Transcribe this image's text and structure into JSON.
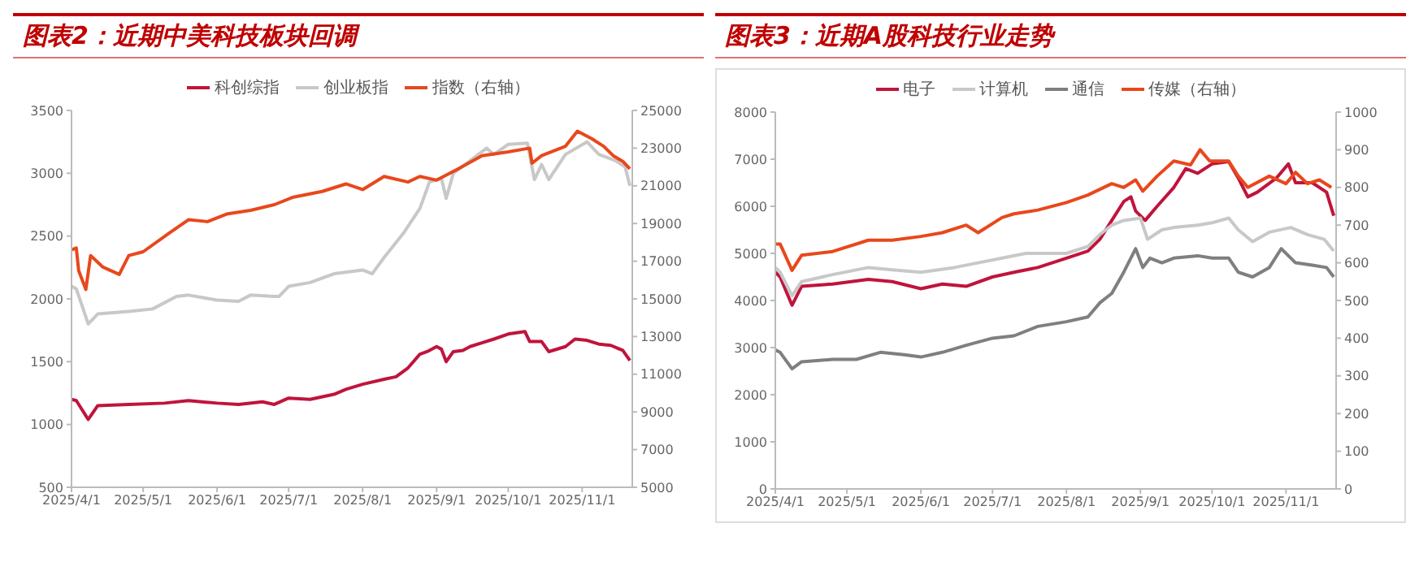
{
  "chart_data": [
    {
      "type": "line",
      "title": "图表2：近期中美科技板块回调",
      "legend": "top",
      "marker": "none",
      "line_style": "solid",
      "grid": false,
      "xlim": [
        "2025-04-01",
        "2025-11-22"
      ],
      "xticks": [
        {
          "value": "2025-04-01",
          "label": "2025/4/1"
        },
        {
          "value": "2025-05-01",
          "label": "2025/5/1"
        },
        {
          "value": "2025-06-01",
          "label": "2025/6/1"
        },
        {
          "value": "2025-07-01",
          "label": "2025/7/1"
        },
        {
          "value": "2025-08-01",
          "label": "2025/8/1"
        },
        {
          "value": "2025-09-01",
          "label": "2025/9/1"
        },
        {
          "value": "2025-10-01",
          "label": "2025/10/1"
        },
        {
          "value": "2025-11-01",
          "label": "2025/11/1"
        }
      ],
      "ylim": [
        500,
        3500
      ],
      "yticks": [
        500,
        1000,
        1500,
        2000,
        2500,
        3000,
        3500
      ],
      "y2lim": [
        5000,
        25000
      ],
      "y2ticks": [
        5000,
        7000,
        9000,
        11000,
        13000,
        15000,
        17000,
        19000,
        21000,
        23000,
        25000
      ],
      "series": [
        {
          "name": "科创综指",
          "color": "#c0143c",
          "x": [
            "2025-04-01",
            "2025-04-03",
            "2025-04-08",
            "2025-04-12",
            "2025-04-25",
            "2025-05-10",
            "2025-05-20",
            "2025-06-01",
            "2025-06-10",
            "2025-06-20",
            "2025-06-25",
            "2025-07-01",
            "2025-07-10",
            "2025-07-20",
            "2025-07-25",
            "2025-08-01",
            "2025-08-10",
            "2025-08-15",
            "2025-08-20",
            "2025-08-25",
            "2025-08-28",
            "2025-09-01",
            "2025-09-03",
            "2025-09-05",
            "2025-09-08",
            "2025-09-12",
            "2025-09-15",
            "2025-09-20",
            "2025-09-25",
            "2025-10-01",
            "2025-10-08",
            "2025-10-10",
            "2025-10-15",
            "2025-10-18",
            "2025-10-25",
            "2025-10-29",
            "2025-11-03",
            "2025-11-08",
            "2025-11-13",
            "2025-11-18",
            "2025-11-21"
          ],
          "values": [
            1200,
            1190,
            1040,
            1150,
            1160,
            1170,
            1190,
            1170,
            1160,
            1180,
            1160,
            1210,
            1200,
            1240,
            1280,
            1320,
            1360,
            1380,
            1450,
            1560,
            1580,
            1620,
            1600,
            1500,
            1580,
            1590,
            1620,
            1650,
            1680,
            1720,
            1740,
            1660,
            1660,
            1580,
            1620,
            1680,
            1670,
            1640,
            1630,
            1590,
            1510
          ]
        },
        {
          "name": "创业板指",
          "color": "#c8c8c8",
          "x": [
            "2025-04-01",
            "2025-04-03",
            "2025-04-08",
            "2025-04-12",
            "2025-04-25",
            "2025-05-05",
            "2025-05-15",
            "2025-05-20",
            "2025-06-01",
            "2025-06-10",
            "2025-06-15",
            "2025-06-25",
            "2025-06-27",
            "2025-07-01",
            "2025-07-10",
            "2025-07-20",
            "2025-08-01",
            "2025-08-05",
            "2025-08-10",
            "2025-08-18",
            "2025-08-25",
            "2025-08-29",
            "2025-09-03",
            "2025-09-05",
            "2025-09-08",
            "2025-09-15",
            "2025-09-22",
            "2025-09-25",
            "2025-10-01",
            "2025-10-09",
            "2025-10-12",
            "2025-10-15",
            "2025-10-18",
            "2025-10-25",
            "2025-11-03",
            "2025-11-08",
            "2025-11-15",
            "2025-11-19",
            "2025-11-21"
          ],
          "values": [
            2100,
            2080,
            1800,
            1880,
            1900,
            1920,
            2020,
            2030,
            1990,
            1980,
            2030,
            2020,
            2020,
            2100,
            2130,
            2200,
            2230,
            2200,
            2330,
            2520,
            2720,
            2930,
            2960,
            2800,
            3000,
            3100,
            3200,
            3150,
            3230,
            3240,
            2950,
            3070,
            2950,
            3150,
            3250,
            3150,
            3100,
            3050,
            2900
          ]
        },
        {
          "name": "指数（右轴）",
          "color": "#e8481c",
          "axis": "y2",
          "x": [
            "2025-04-01",
            "2025-04-03",
            "2025-04-04",
            "2025-04-07",
            "2025-04-09",
            "2025-04-14",
            "2025-04-21",
            "2025-04-25",
            "2025-05-01",
            "2025-05-12",
            "2025-05-20",
            "2025-05-28",
            "2025-06-05",
            "2025-06-15",
            "2025-06-25",
            "2025-07-03",
            "2025-07-15",
            "2025-07-25",
            "2025-08-01",
            "2025-08-10",
            "2025-08-20",
            "2025-08-25",
            "2025-09-01",
            "2025-09-10",
            "2025-09-20",
            "2025-10-01",
            "2025-10-10",
            "2025-10-11",
            "2025-10-15",
            "2025-10-25",
            "2025-10-30",
            "2025-11-05",
            "2025-11-10",
            "2025-11-14",
            "2025-11-18",
            "2025-11-21"
          ],
          "values": [
            17600,
            17700,
            16500,
            15500,
            17300,
            16700,
            16300,
            17300,
            17500,
            18500,
            19200,
            19100,
            19500,
            19700,
            20000,
            20400,
            20700,
            21100,
            20800,
            21500,
            21200,
            21500,
            21300,
            21900,
            22600,
            22800,
            23000,
            22200,
            22600,
            23100,
            23900,
            23500,
            23100,
            22600,
            22300,
            21900
          ]
        }
      ]
    },
    {
      "type": "line",
      "title": "图表3：近期A股科技行业走势",
      "legend": "top",
      "marker": "none",
      "line_style": "solid",
      "grid": false,
      "xlim": [
        "2025-04-01",
        "2025-11-22"
      ],
      "xticks": [
        {
          "value": "2025-04-01",
          "label": "2025/4/1"
        },
        {
          "value": "2025-05-01",
          "label": "2025/5/1"
        },
        {
          "value": "2025-06-01",
          "label": "2025/6/1"
        },
        {
          "value": "2025-07-01",
          "label": "2025/7/1"
        },
        {
          "value": "2025-08-01",
          "label": "2025/8/1"
        },
        {
          "value": "2025-09-01",
          "label": "2025/9/1"
        },
        {
          "value": "2025-10-01",
          "label": "2025/10/1"
        },
        {
          "value": "2025-11-01",
          "label": "2025/11/1"
        }
      ],
      "ylim": [
        0,
        8000
      ],
      "yticks": [
        0,
        1000,
        2000,
        3000,
        4000,
        5000,
        6000,
        7000,
        8000
      ],
      "y2lim": [
        0,
        1000
      ],
      "y2ticks": [
        0,
        100,
        200,
        300,
        400,
        500,
        600,
        700,
        800,
        900,
        1000
      ],
      "series": [
        {
          "name": "电子",
          "color": "#c0143c",
          "x": [
            "2025-04-01",
            "2025-04-03",
            "2025-04-08",
            "2025-04-12",
            "2025-04-25",
            "2025-05-10",
            "2025-05-20",
            "2025-06-01",
            "2025-06-10",
            "2025-06-20",
            "2025-07-01",
            "2025-07-10",
            "2025-07-20",
            "2025-08-01",
            "2025-08-10",
            "2025-08-15",
            "2025-08-20",
            "2025-08-25",
            "2025-08-28",
            "2025-08-30",
            "2025-09-03",
            "2025-09-08",
            "2025-09-15",
            "2025-09-20",
            "2025-09-25",
            "2025-10-01",
            "2025-10-08",
            "2025-10-12",
            "2025-10-16",
            "2025-10-20",
            "2025-10-28",
            "2025-11-02",
            "2025-11-05",
            "2025-11-12",
            "2025-11-18",
            "2025-11-21"
          ],
          "values": [
            4600,
            4500,
            3900,
            4300,
            4350,
            4450,
            4400,
            4250,
            4350,
            4300,
            4500,
            4600,
            4700,
            4900,
            5050,
            5300,
            5700,
            6100,
            6200,
            5900,
            5700,
            6000,
            6400,
            6800,
            6700,
            6900,
            6950,
            6600,
            6200,
            6300,
            6600,
            6900,
            6500,
            6500,
            6300,
            5800
          ]
        },
        {
          "name": "计算机",
          "color": "#c8c8c8",
          "x": [
            "2025-04-01",
            "2025-04-03",
            "2025-04-08",
            "2025-04-12",
            "2025-04-25",
            "2025-05-10",
            "2025-05-20",
            "2025-06-01",
            "2025-06-15",
            "2025-06-25",
            "2025-07-05",
            "2025-07-15",
            "2025-08-01",
            "2025-08-10",
            "2025-08-15",
            "2025-08-20",
            "2025-08-25",
            "2025-09-01",
            "2025-09-04",
            "2025-09-10",
            "2025-09-15",
            "2025-09-25",
            "2025-10-01",
            "2025-10-08",
            "2025-10-12",
            "2025-10-18",
            "2025-10-25",
            "2025-11-03",
            "2025-11-10",
            "2025-11-17",
            "2025-11-21"
          ],
          "values": [
            4700,
            4600,
            4100,
            4400,
            4550,
            4700,
            4650,
            4600,
            4700,
            4800,
            4900,
            5000,
            5000,
            5150,
            5400,
            5600,
            5700,
            5750,
            5300,
            5500,
            5550,
            5600,
            5650,
            5750,
            5500,
            5250,
            5450,
            5550,
            5400,
            5300,
            5050
          ]
        },
        {
          "name": "通信",
          "color": "#7f7f7f",
          "x": [
            "2025-04-01",
            "2025-04-03",
            "2025-04-08",
            "2025-04-12",
            "2025-04-25",
            "2025-05-05",
            "2025-05-15",
            "2025-05-25",
            "2025-06-01",
            "2025-06-10",
            "2025-06-20",
            "2025-07-01",
            "2025-07-10",
            "2025-07-20",
            "2025-08-01",
            "2025-08-10",
            "2025-08-15",
            "2025-08-20",
            "2025-08-25",
            "2025-08-30",
            "2025-09-02",
            "2025-09-05",
            "2025-09-10",
            "2025-09-15",
            "2025-09-25",
            "2025-10-01",
            "2025-10-08",
            "2025-10-12",
            "2025-10-18",
            "2025-10-25",
            "2025-10-30",
            "2025-11-05",
            "2025-11-12",
            "2025-11-18",
            "2025-11-21"
          ],
          "values": [
            2950,
            2900,
            2550,
            2700,
            2750,
            2750,
            2900,
            2850,
            2800,
            2900,
            3050,
            3200,
            3250,
            3450,
            3550,
            3650,
            3950,
            4150,
            4600,
            5100,
            4700,
            4900,
            4800,
            4900,
            4950,
            4900,
            4900,
            4600,
            4500,
            4700,
            5100,
            4800,
            4750,
            4700,
            4500
          ]
        },
        {
          "name": "传媒（右轴）",
          "color": "#e8481c",
          "axis": "y2",
          "x": [
            "2025-04-01",
            "2025-04-03",
            "2025-04-08",
            "2025-04-12",
            "2025-04-25",
            "2025-05-10",
            "2025-05-20",
            "2025-06-01",
            "2025-06-10",
            "2025-06-20",
            "2025-06-25",
            "2025-07-05",
            "2025-07-10",
            "2025-07-20",
            "2025-08-01",
            "2025-08-10",
            "2025-08-20",
            "2025-08-25",
            "2025-08-30",
            "2025-09-02",
            "2025-09-08",
            "2025-09-15",
            "2025-09-22",
            "2025-09-26",
            "2025-09-30",
            "2025-10-08",
            "2025-10-12",
            "2025-10-16",
            "2025-10-25",
            "2025-11-01",
            "2025-11-05",
            "2025-11-10",
            "2025-11-15",
            "2025-11-20"
          ],
          "values": [
            650,
            650,
            580,
            620,
            630,
            660,
            660,
            670,
            680,
            700,
            680,
            720,
            730,
            740,
            760,
            780,
            810,
            800,
            820,
            790,
            830,
            870,
            860,
            900,
            870,
            870,
            830,
            800,
            830,
            810,
            840,
            810,
            820,
            800
          ]
        }
      ]
    }
  ]
}
